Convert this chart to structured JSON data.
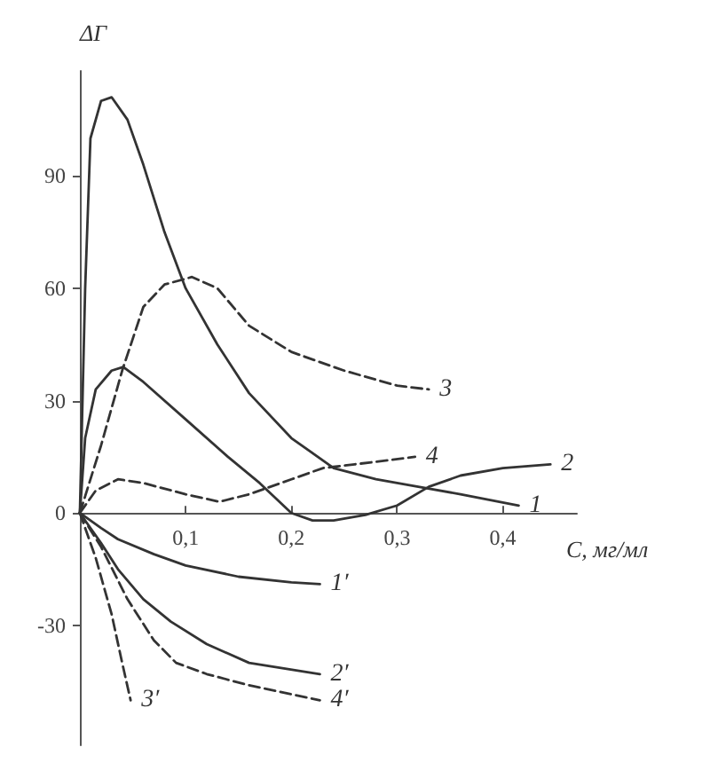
{
  "chart_data": {
    "type": "line",
    "xlabel": "C, мг/мл",
    "ylabel": "ΔΓ",
    "xlim": [
      0,
      0.47
    ],
    "ylim": [
      -62,
      118
    ],
    "xticks": [
      {
        "value": 0.1,
        "label": "0,1"
      },
      {
        "value": 0.2,
        "label": "0,2"
      },
      {
        "value": 0.3,
        "label": "0,3"
      },
      {
        "value": 0.4,
        "label": "0,4"
      }
    ],
    "yticks": [
      -30,
      0,
      30,
      60,
      90
    ],
    "grid": false,
    "legend": false,
    "marker": "none",
    "series": [
      {
        "name": "1",
        "color": "#333333",
        "line_style": "solid",
        "x": [
          0,
          0.005,
          0.01,
          0.02,
          0.03,
          0.045,
          0.06,
          0.08,
          0.1,
          0.13,
          0.16,
          0.2,
          0.24,
          0.28,
          0.32,
          0.36,
          0.415
        ],
        "values": [
          0,
          60,
          100,
          110,
          111,
          105,
          93,
          75,
          60,
          45,
          32,
          20,
          12,
          9,
          7,
          5,
          2
        ]
      },
      {
        "name": "2",
        "color": "#333333",
        "line_style": "solid",
        "x": [
          0,
          0.005,
          0.015,
          0.03,
          0.041,
          0.06,
          0.1,
          0.14,
          0.17,
          0.2,
          0.22,
          0.24,
          0.27,
          0.3,
          0.33,
          0.36,
          0.4,
          0.445
        ],
        "values": [
          0,
          20,
          33,
          38,
          39,
          35,
          25,
          15,
          8,
          0,
          -2,
          -2,
          -0.5,
          2,
          7,
          10,
          12,
          13
        ]
      },
      {
        "name": "3",
        "color": "#333333",
        "line_style": "dashed",
        "x": [
          0,
          0.02,
          0.04,
          0.06,
          0.08,
          0.106,
          0.13,
          0.16,
          0.2,
          0.25,
          0.3,
          0.33
        ],
        "values": [
          0,
          18,
          38,
          55,
          61,
          63,
          60,
          50,
          43,
          38,
          34,
          33
        ]
      },
      {
        "name": "4",
        "color": "#333333",
        "line_style": "dashed",
        "x": [
          0,
          0.015,
          0.036,
          0.06,
          0.1,
          0.132,
          0.16,
          0.2,
          0.23,
          0.26,
          0.317
        ],
        "values": [
          0,
          6,
          9,
          8,
          5,
          3,
          5,
          9,
          12,
          13,
          15
        ]
      },
      {
        "name": "1′",
        "color": "#333333",
        "line_style": "solid",
        "x": [
          0,
          0.02,
          0.036,
          0.07,
          0.1,
          0.15,
          0.2,
          0.227
        ],
        "values": [
          0,
          -4,
          -7,
          -11,
          -14,
          -17,
          -18.5,
          -19
        ]
      },
      {
        "name": "2′",
        "color": "#333333",
        "line_style": "solid",
        "x": [
          0,
          0.02,
          0.036,
          0.06,
          0.086,
          0.12,
          0.16,
          0.227
        ],
        "values": [
          0,
          -8,
          -15,
          -23,
          -29,
          -35,
          -40,
          -43
        ]
      },
      {
        "name": "3′",
        "color": "#333333",
        "line_style": "dashed",
        "x": [
          0,
          0.015,
          0.03,
          0.04,
          0.048
        ],
        "values": [
          0,
          -12,
          -27,
          -40,
          -50
        ]
      },
      {
        "name": "4′",
        "color": "#333333",
        "line_style": "dashed",
        "x": [
          0,
          0.02,
          0.045,
          0.07,
          0.091,
          0.12,
          0.16,
          0.227
        ],
        "values": [
          0,
          -9,
          -23,
          -34,
          -40,
          -43,
          -46,
          -50
        ]
      }
    ]
  }
}
